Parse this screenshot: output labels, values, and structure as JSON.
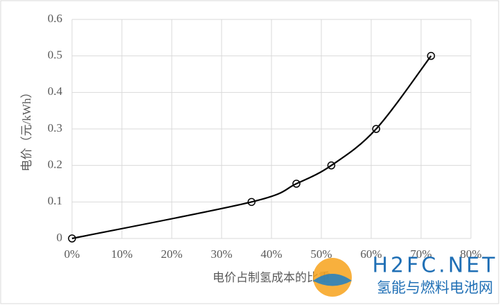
{
  "chart_data": {
    "type": "line",
    "x_label": "电价占制氢成本的比重",
    "y_label": "电价（元/kWh）",
    "x": [
      0,
      36,
      45,
      52,
      61,
      72
    ],
    "series": [
      {
        "name": "电价",
        "color": "#000000",
        "values": [
          0,
          0.1,
          0.15,
          0.2,
          0.3,
          0.5
        ]
      }
    ],
    "xlim": [
      0,
      80
    ],
    "xticks": [
      {
        "value": 0,
        "label": "0%"
      },
      {
        "value": 10,
        "label": "10%"
      },
      {
        "value": 20,
        "label": "20%"
      },
      {
        "value": 30,
        "label": "30%"
      },
      {
        "value": 40,
        "label": "40%"
      },
      {
        "value": 50,
        "label": "50%"
      },
      {
        "value": 60,
        "label": "60%"
      },
      {
        "value": 70,
        "label": "70%"
      },
      {
        "value": 80,
        "label": "80%"
      }
    ],
    "ylim": [
      0,
      0.6
    ],
    "yticks": [
      0,
      0.1,
      0.2,
      0.3,
      0.4,
      0.5,
      0.6
    ],
    "grid": true,
    "smooth": true,
    "markers": true
  },
  "watermark": {
    "title": "H2FC.NET",
    "subtitle": "氢能与燃料电池网"
  }
}
